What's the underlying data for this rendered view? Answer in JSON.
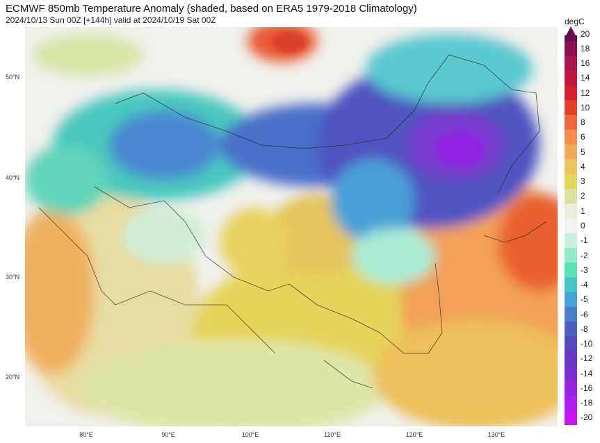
{
  "title": "ECMWF 850mb Temperature Anomaly (shaded, based on ERA5 1979-2018 Climatology)",
  "subtitle": "2024/10/13 Sun 00Z [+144h] valid at 2024/10/19 Sat 00Z",
  "lat_labels": [
    "50°N",
    "40°N",
    "30°N",
    "20°N"
  ],
  "lon_labels": [
    "80°E",
    "90°E",
    "100°E",
    "110°E",
    "120°E",
    "130°E"
  ],
  "colorbar": {
    "unit": "degC",
    "levels": [
      "20",
      "18",
      "16",
      "14",
      "12",
      "10",
      "8",
      "6",
      "5",
      "4",
      "3",
      "2",
      "1",
      "0",
      "-1",
      "-2",
      "-3",
      "-4",
      "-5",
      "-6",
      "-8",
      "-10",
      "-12",
      "-14",
      "-16",
      "-18",
      "-20"
    ],
    "colors": [
      "#6a0a4f",
      "#8a1050",
      "#a8164d",
      "#c0183f",
      "#d51f2c",
      "#e3402c",
      "#ec6a3a",
      "#f28d4e",
      "#f0aa5c",
      "#ebc55f",
      "#e4d85a",
      "#dbe2a0",
      "#eaeed8",
      "#f2f2f2",
      "#c8f0dc",
      "#92ecc7",
      "#5ee0b5",
      "#44c5c7",
      "#4aa3d8",
      "#4a7ec9",
      "#4d5fc0",
      "#5548b8",
      "#6438c2",
      "#7a2ed0",
      "#9526e0",
      "#b01ef0",
      "#c815f5"
    ]
  }
}
